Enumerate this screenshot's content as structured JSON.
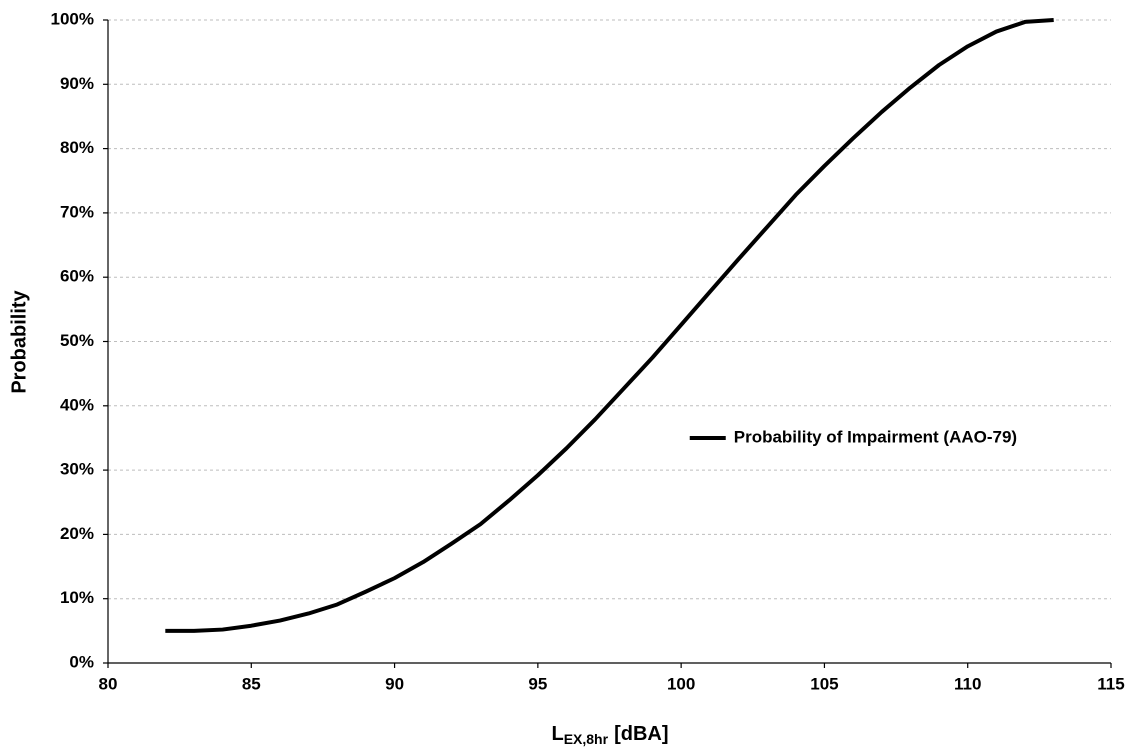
{
  "chart_data": {
    "type": "line",
    "y_label": "Probability",
    "x_label": {
      "main": "L",
      "subscript": "EX,8hr",
      "suffix": "[dBA]"
    },
    "x": [
      82,
      83,
      84,
      85,
      86,
      87,
      88,
      89,
      90,
      91,
      92,
      93,
      94,
      95,
      96,
      97,
      98,
      99,
      100,
      101,
      102,
      103,
      104,
      105,
      106,
      107,
      108,
      109,
      110,
      111,
      112,
      113
    ],
    "series": [
      {
        "name": "Probability of Impairment (AAO-79)",
        "color": "#000000",
        "values": [
          5,
          5,
          5.2,
          5.8,
          6.6,
          7.7,
          9.1,
          11.1,
          13.2,
          15.7,
          18.6,
          21.6,
          25.3,
          29.2,
          33.4,
          37.9,
          42.7,
          47.5,
          52.6,
          57.7,
          62.8,
          67.8,
          72.8,
          77.3,
          81.6,
          85.7,
          89.5,
          93.0,
          95.9,
          98.2,
          99.7,
          100
        ]
      }
    ],
    "xlim": [
      80,
      115
    ],
    "xticks": [
      80,
      85,
      90,
      95,
      100,
      105,
      110,
      115
    ],
    "ylim": [
      0,
      100
    ],
    "yticks": [
      {
        "value": 0,
        "label": "0%"
      },
      {
        "value": 10,
        "label": "10%"
      },
      {
        "value": 20,
        "label": "20%"
      },
      {
        "value": 30,
        "label": "30%"
      },
      {
        "value": 40,
        "label": "40%"
      },
      {
        "value": 50,
        "label": "50%"
      },
      {
        "value": 60,
        "label": "60%"
      },
      {
        "value": 70,
        "label": "70%"
      },
      {
        "value": 80,
        "label": "80%"
      },
      {
        "value": 90,
        "label": "90%"
      },
      {
        "value": 100,
        "label": "100%"
      }
    ],
    "grid": true,
    "legend_position": "center right"
  }
}
